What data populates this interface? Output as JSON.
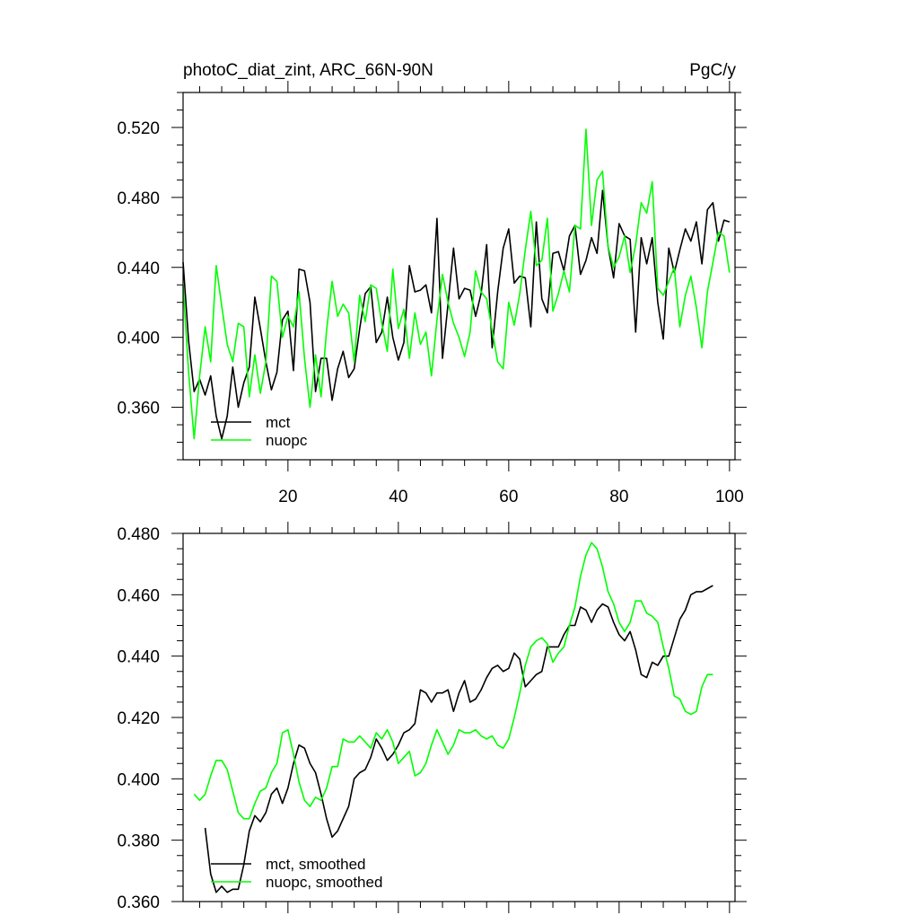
{
  "chart_data": [
    {
      "type": "line",
      "title_left": "photoC_diat_zint, ARC_66N-90N",
      "title_right": "PgC/y",
      "xlabel": "",
      "ylabel": "",
      "xlim": [
        1,
        101
      ],
      "ylim": [
        0.33,
        0.54
      ],
      "xticks": [
        20,
        40,
        60,
        80,
        100
      ],
      "xtick_labels": [
        "20",
        "40",
        "60",
        "80",
        "100"
      ],
      "yticks": [
        0.36,
        0.4,
        0.44,
        0.48,
        0.52
      ],
      "ytick_labels": [
        "0.360",
        "0.400",
        "0.440",
        "0.480",
        "0.520"
      ],
      "legend_position": "bottom-left",
      "series": [
        {
          "name": "mct",
          "color": "#000000",
          "x_start": 1,
          "values": [
            0.443,
            0.398,
            0.369,
            0.376,
            0.367,
            0.378,
            0.355,
            0.342,
            0.355,
            0.383,
            0.36,
            0.374,
            0.383,
            0.423,
            0.405,
            0.386,
            0.37,
            0.38,
            0.41,
            0.415,
            0.381,
            0.439,
            0.438,
            0.42,
            0.369,
            0.388,
            0.388,
            0.364,
            0.382,
            0.392,
            0.377,
            0.382,
            0.405,
            0.425,
            0.429,
            0.397,
            0.403,
            0.423,
            0.4,
            0.387,
            0.397,
            0.441,
            0.426,
            0.427,
            0.43,
            0.414,
            0.468,
            0.388,
            0.419,
            0.451,
            0.422,
            0.428,
            0.427,
            0.412,
            0.425,
            0.453,
            0.394,
            0.426,
            0.451,
            0.462,
            0.431,
            0.435,
            0.434,
            0.406,
            0.466,
            0.422,
            0.414,
            0.448,
            0.449,
            0.438,
            0.458,
            0.464,
            0.436,
            0.444,
            0.457,
            0.448,
            0.484,
            0.452,
            0.434,
            0.465,
            0.458,
            0.456,
            0.403,
            0.457,
            0.442,
            0.457,
            0.42,
            0.399,
            0.451,
            0.437,
            0.45,
            0.462,
            0.455,
            0.466,
            0.442,
            0.473,
            0.477,
            0.455,
            0.467,
            0.466
          ]
        },
        {
          "name": "nuopc",
          "color": "#00ff00",
          "x_start": 1,
          "values": [
            0.43,
            0.38,
            0.342,
            0.378,
            0.406,
            0.386,
            0.441,
            0.418,
            0.396,
            0.386,
            0.408,
            0.406,
            0.366,
            0.39,
            0.368,
            0.386,
            0.435,
            0.432,
            0.4,
            0.412,
            0.406,
            0.426,
            0.388,
            0.36,
            0.39,
            0.366,
            0.404,
            0.432,
            0.412,
            0.419,
            0.414,
            0.386,
            0.424,
            0.409,
            0.43,
            0.428,
            0.408,
            0.392,
            0.439,
            0.405,
            0.416,
            0.388,
            0.414,
            0.396,
            0.403,
            0.378,
            0.41,
            0.436,
            0.42,
            0.408,
            0.4,
            0.389,
            0.403,
            0.438,
            0.426,
            0.422,
            0.404,
            0.386,
            0.382,
            0.42,
            0.407,
            0.425,
            0.45,
            0.472,
            0.441,
            0.444,
            0.468,
            0.415,
            0.425,
            0.438,
            0.426,
            0.464,
            0.462,
            0.519,
            0.464,
            0.49,
            0.495,
            0.452,
            0.44,
            0.446,
            0.458,
            0.437,
            0.453,
            0.477,
            0.471,
            0.489,
            0.428,
            0.424,
            0.432,
            0.44,
            0.406,
            0.424,
            0.435,
            0.417,
            0.394,
            0.426,
            0.443,
            0.46,
            0.458,
            0.437
          ]
        }
      ]
    },
    {
      "type": "line",
      "title": "",
      "xlabel": "",
      "ylabel": "",
      "xlim": [
        1,
        101
      ],
      "ylim": [
        0.36,
        0.48
      ],
      "xticks": [
        20,
        40,
        60,
        80,
        100
      ],
      "xtick_labels": [],
      "yticks": [
        0.36,
        0.38,
        0.4,
        0.42,
        0.44,
        0.46,
        0.48
      ],
      "ytick_labels": [
        "0.360",
        "0.380",
        "0.400",
        "0.420",
        "0.440",
        "0.460",
        "0.480"
      ],
      "legend_position": "bottom-left",
      "series": [
        {
          "name": "mct, smoothed",
          "color": "#000000",
          "x_start": 5,
          "values": [
            0.384,
            0.369,
            0.363,
            0.365,
            0.363,
            0.364,
            0.364,
            0.372,
            0.383,
            0.388,
            0.386,
            0.389,
            0.395,
            0.397,
            0.392,
            0.397,
            0.405,
            0.411,
            0.41,
            0.405,
            0.402,
            0.395,
            0.387,
            0.381,
            0.383,
            0.387,
            0.391,
            0.4,
            0.402,
            0.403,
            0.407,
            0.413,
            0.41,
            0.406,
            0.408,
            0.411,
            0.415,
            0.416,
            0.418,
            0.429,
            0.428,
            0.425,
            0.428,
            0.428,
            0.429,
            0.422,
            0.428,
            0.432,
            0.425,
            0.426,
            0.429,
            0.433,
            0.436,
            0.437,
            0.435,
            0.436,
            0.441,
            0.439,
            0.43,
            0.432,
            0.434,
            0.435,
            0.443,
            0.443,
            0.443,
            0.447,
            0.45,
            0.45,
            0.456,
            0.455,
            0.451,
            0.455,
            0.457,
            0.456,
            0.451,
            0.447,
            0.445,
            0.448,
            0.442,
            0.434,
            0.433,
            0.438,
            0.437,
            0.44,
            0.44,
            0.446,
            0.452,
            0.455,
            0.46,
            0.461,
            0.461,
            0.462,
            0.463
          ]
        },
        {
          "name": "nuopc, smoothed",
          "color": "#00ff00",
          "x_start": 3,
          "values": [
            0.395,
            0.393,
            0.395,
            0.401,
            0.406,
            0.406,
            0.403,
            0.396,
            0.389,
            0.387,
            0.387,
            0.392,
            0.396,
            0.397,
            0.402,
            0.405,
            0.415,
            0.416,
            0.408,
            0.399,
            0.393,
            0.391,
            0.394,
            0.393,
            0.397,
            0.404,
            0.404,
            0.413,
            0.412,
            0.412,
            0.414,
            0.412,
            0.41,
            0.415,
            0.413,
            0.416,
            0.412,
            0.405,
            0.407,
            0.409,
            0.401,
            0.402,
            0.405,
            0.411,
            0.416,
            0.412,
            0.408,
            0.411,
            0.416,
            0.415,
            0.415,
            0.416,
            0.414,
            0.413,
            0.414,
            0.411,
            0.41,
            0.413,
            0.42,
            0.428,
            0.437,
            0.443,
            0.445,
            0.446,
            0.444,
            0.438,
            0.441,
            0.443,
            0.45,
            0.456,
            0.466,
            0.473,
            0.477,
            0.475,
            0.469,
            0.461,
            0.457,
            0.451,
            0.448,
            0.451,
            0.458,
            0.458,
            0.454,
            0.453,
            0.451,
            0.443,
            0.436,
            0.427,
            0.426,
            0.422,
            0.421,
            0.422,
            0.43,
            0.434,
            0.434
          ]
        }
      ]
    }
  ]
}
